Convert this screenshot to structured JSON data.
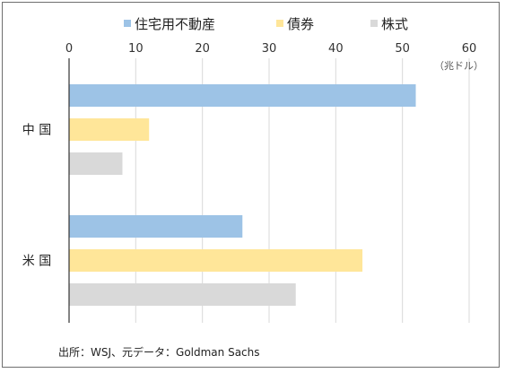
{
  "chart_data": {
    "type": "bar",
    "orientation": "horizontal",
    "categories": [
      "中 国",
      "米 国"
    ],
    "series": [
      {
        "name": "住宅用不動産",
        "color": "#9dc3e6",
        "values": [
          52,
          26
        ]
      },
      {
        "name": "債券",
        "color": "#ffe699",
        "values": [
          12,
          44
        ]
      },
      {
        "name": "株式",
        "color": "#d9d9d9",
        "values": [
          8,
          34
        ]
      }
    ],
    "x_ticks": [
      "0",
      "10",
      "20",
      "30",
      "40",
      "50",
      "60"
    ],
    "unit_label": "（兆ドル）",
    "xlim": [
      0,
      60
    ],
    "grid": true,
    "legend_position": "top",
    "source": "出所：WSJ、元データ：Goldman Sachs"
  }
}
